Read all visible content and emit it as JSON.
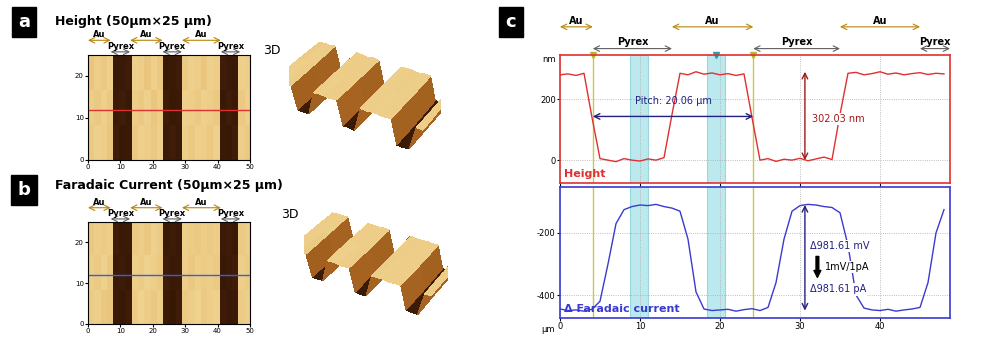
{
  "panel_labels": [
    "a",
    "b",
    "c"
  ],
  "chart_data": [
    {
      "type": "heatmap",
      "title": "Height (50μm×25 μm)",
      "view_3d": "3D",
      "xlim": [
        0,
        50
      ],
      "ylim": [
        0,
        25
      ],
      "xticks": [
        0,
        10,
        20,
        30,
        40,
        50
      ],
      "yticks": [
        0,
        10,
        20
      ],
      "zlim": [
        -20,
        320
      ],
      "cells": [
        [
          290,
          300,
          295,
          285,
          10,
          0,
          5,
          290,
          300,
          295,
          290,
          300,
          5,
          10,
          0,
          295,
          290,
          300,
          295,
          290,
          300,
          5,
          0,
          10,
          295,
          290
        ],
        [
          295,
          290,
          300,
          290,
          5,
          10,
          0,
          295,
          290,
          300,
          285,
          295,
          10,
          0,
          5,
          300,
          295,
          290,
          300,
          295,
          290,
          0,
          10,
          5,
          290,
          300
        ],
        [
          285,
          295,
          290,
          300,
          0,
          5,
          10,
          300,
          295,
          285,
          300,
          290,
          0,
          5,
          10,
          290,
          300,
          295,
          285,
          300,
          295,
          10,
          5,
          0,
          300,
          295
        ]
      ],
      "regions": [
        {
          "text": "Au",
          "from": 0,
          "to": 7
        },
        {
          "text": "Pyrex",
          "from": 7,
          "to": 13
        },
        {
          "text": "Au",
          "from": 13,
          "to": 23
        },
        {
          "text": "Pyrex",
          "from": 23,
          "to": 29
        },
        {
          "text": "Au",
          "from": 29,
          "to": 41
        },
        {
          "text": "Pyrex",
          "from": 41,
          "to": 47
        }
      ],
      "profile_line": {
        "y": 12,
        "color": "#e03030"
      }
    },
    {
      "type": "heatmap",
      "title": "Faradaic Current (50μm×25 μm)",
      "view_3d": "3D",
      "xlim": [
        0,
        50
      ],
      "ylim": [
        0,
        25
      ],
      "xticks": [
        0,
        10,
        20,
        30,
        40,
        50
      ],
      "yticks": [
        0,
        10,
        20
      ],
      "zlim": [
        -470,
        -90
      ],
      "cells": [
        [
          -120,
          -115,
          -125,
          -130,
          -440,
          -445,
          -435,
          -120,
          -110,
          -118,
          -125,
          -115,
          -440,
          -448,
          -436,
          -122,
          -116,
          -110,
          -124,
          -118,
          -112,
          -438,
          -445,
          -442,
          -120,
          -115
        ],
        [
          -118,
          -122,
          -112,
          -125,
          -442,
          -438,
          -446,
          -115,
          -120,
          -112,
          -118,
          -124,
          -436,
          -444,
          -440,
          -118,
          -125,
          -114,
          -120,
          -116,
          -122,
          -446,
          -440,
          -436,
          -114,
          -120
        ],
        [
          -125,
          -118,
          -120,
          -115,
          -436,
          -442,
          -440,
          -122,
          -118,
          -125,
          -112,
          -120,
          -444,
          -438,
          -446,
          -115,
          -120,
          -124,
          -116,
          -122,
          -118,
          -440,
          -436,
          -446,
          -122,
          -118
        ]
      ],
      "regions": [
        {
          "text": "Au",
          "from": 0,
          "to": 7
        },
        {
          "text": "Pyrex",
          "from": 7,
          "to": 13
        },
        {
          "text": "Au",
          "from": 13,
          "to": 23
        },
        {
          "text": "Pyrex",
          "from": 23,
          "to": 29
        },
        {
          "text": "Au",
          "from": 29,
          "to": 41
        },
        {
          "text": "Pyrex",
          "from": 41,
          "to": 47
        }
      ],
      "profile_line": {
        "y": 12,
        "color": "#3060e0"
      }
    },
    {
      "type": "line",
      "y_label": "nm",
      "x": [
        0,
        1,
        2,
        3,
        4,
        5,
        6,
        7,
        8,
        9,
        10,
        11,
        12,
        13,
        14,
        15,
        16,
        17,
        18,
        19,
        20,
        21,
        22,
        23,
        24,
        25,
        26,
        27,
        28,
        29,
        30,
        31,
        32,
        33,
        34,
        35,
        36,
        37,
        38,
        39,
        40,
        41,
        42,
        43,
        44,
        45,
        46,
        47,
        48
      ],
      "series": [
        {
          "name": "Height",
          "color": "#e03030",
          "values": [
            280,
            283,
            278,
            285,
            140,
            5,
            0,
            -5,
            5,
            0,
            -3,
            4,
            0,
            8,
            150,
            285,
            280,
            290,
            282,
            286,
            280,
            284,
            278,
            283,
            140,
            0,
            5,
            -4,
            3,
            0,
            6,
            -2,
            4,
            10,
            2,
            150,
            285,
            288,
            280,
            284,
            290,
            282,
            286,
            280,
            284,
            287,
            281,
            285,
            283
          ]
        }
      ],
      "xlim": [
        0,
        48.75
      ],
      "ylim": [
        -75,
        345
      ],
      "xticks": [
        0,
        10,
        20,
        30,
        40
      ],
      "yticks": [
        0,
        200
      ],
      "grid": true,
      "tick_labels": "y",
      "regions": [
        {
          "text": "Au",
          "from": 0,
          "to": 4.1
        },
        {
          "text": "Pyrex",
          "from": 4.1,
          "to": 14
        },
        {
          "text": "Au",
          "from": 14,
          "to": 24.16
        },
        {
          "text": "Pyrex",
          "from": 24.16,
          "to": 35
        },
        {
          "text": "Au",
          "from": 35,
          "to": 45
        },
        {
          "text": "Pyrex",
          "from": 45,
          "to": 48.75
        }
      ],
      "cursors": [
        4.1,
        24.16
      ],
      "bands": [
        [
          8.75,
          11
        ],
        [
          18.4,
          20.6
        ]
      ],
      "annotations": [
        {
          "text": "Pitch: 20.06 μm",
          "from": 4.1,
          "to": 24.16
        },
        {
          "text": "302.03 nm",
          "from": 0,
          "to": 290
        }
      ]
    },
    {
      "type": "line",
      "x_label": "μm",
      "x": [
        0,
        1,
        2,
        3,
        4,
        5,
        6,
        7,
        8,
        9,
        10,
        11,
        12,
        13,
        14,
        15,
        16,
        17,
        18,
        19,
        20,
        21,
        22,
        23,
        24,
        25,
        26,
        27,
        28,
        29,
        30,
        31,
        32,
        33,
        34,
        35,
        36,
        37,
        38,
        39,
        40,
        41,
        42,
        43,
        44,
        45,
        46,
        47,
        48
      ],
      "series": [
        {
          "name": "Δ Faradaic current",
          "color": "#3a3ad0",
          "values": [
            -445,
            -450,
            -448,
            -452,
            -446,
            -420,
            -300,
            -170,
            -125,
            -115,
            -110,
            -112,
            -108,
            -115,
            -120,
            -130,
            -220,
            -390,
            -445,
            -450,
            -448,
            -446,
            -452,
            -447,
            -444,
            -450,
            -440,
            -360,
            -220,
            -130,
            -112,
            -108,
            -110,
            -115,
            -118,
            -135,
            -240,
            -400,
            -442,
            -448,
            -450,
            -446,
            -452,
            -448,
            -445,
            -440,
            -360,
            -200,
            -125
          ]
        }
      ],
      "xlim": [
        0,
        48.75
      ],
      "ylim": [
        -474,
        -52
      ],
      "xticks": [
        0,
        10,
        20,
        30,
        40
      ],
      "yticks": [
        -200,
        -400
      ],
      "grid": true,
      "cursors": [
        4.1,
        24.16
      ],
      "bands": [
        [
          8.75,
          11
        ],
        [
          18.4,
          20.6
        ]
      ],
      "annotations": [
        {
          "text": "Δ981.61 mV",
          "from": -450,
          "to": -110
        },
        {
          "text": "1mV/1pA"
        },
        {
          "text": "Δ981.61 pA"
        }
      ]
    }
  ]
}
